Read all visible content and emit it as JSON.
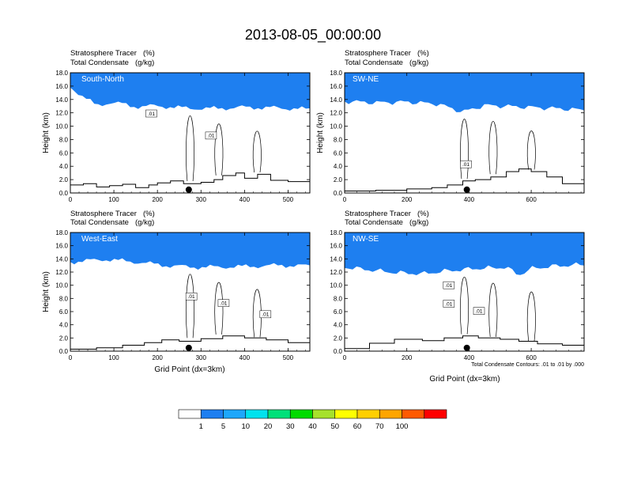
{
  "title": "2013-08-05_00:00:00",
  "colors": {
    "levels": [
      "#ffffff",
      "#1e7ff0",
      "#1ea7fb",
      "#00e2ee",
      "#00e07a",
      "#00db00",
      "#a6e12c",
      "#ffff00",
      "#ffcf00",
      "#ffa500",
      "#ff5a00",
      "#ff0000"
    ],
    "terrain": "#000000",
    "contour": "#000000"
  },
  "colorbar": {
    "labels": [
      "1",
      "5",
      "10",
      "20",
      "30",
      "40",
      "50",
      "60",
      "70",
      "100"
    ]
  },
  "contour_note": "Total Condensate Contours: .01 to .01 by .000",
  "chart_data": [
    {
      "type": "heatmap",
      "panel": "South-North",
      "header_left_1": "Stratosphere Tracer",
      "header_units_1": "(%)",
      "header_left_2": "Total Condensate",
      "header_units_2": "(g/kg)",
      "ylabel": "Height (km)",
      "xlabel": "",
      "xlim": [
        0,
        550
      ],
      "ylim": [
        0,
        18
      ],
      "xticks": [
        "0",
        "100",
        "200",
        "300",
        "400",
        "500"
      ],
      "yticks": [
        "0.0",
        "2.0",
        "4.0",
        "6.0",
        "8.0",
        "10.0",
        "12.0",
        "14.0",
        "16.0",
        "18.0"
      ],
      "tropopause_km": [
        [
          0,
          15.8
        ],
        [
          30,
          14.2
        ],
        [
          60,
          13.0
        ],
        [
          90,
          13.4
        ],
        [
          120,
          13.2
        ],
        [
          150,
          12.8
        ],
        [
          200,
          12.9
        ],
        [
          260,
          12.6
        ],
        [
          320,
          12.5
        ],
        [
          400,
          12.7
        ],
        [
          480,
          12.6
        ],
        [
          550,
          12.4
        ]
      ],
      "terrain_km": [
        [
          0,
          1.2
        ],
        [
          30,
          1.4
        ],
        [
          60,
          0.9
        ],
        [
          90,
          1.1
        ],
        [
          120,
          1.3
        ],
        [
          150,
          0.8
        ],
        [
          180,
          1.2
        ],
        [
          200,
          1.5
        ],
        [
          230,
          1.8
        ],
        [
          260,
          1.4
        ],
        [
          300,
          1.6
        ],
        [
          330,
          2.0
        ],
        [
          350,
          2.6
        ],
        [
          380,
          3.0
        ],
        [
          400,
          2.2
        ],
        [
          430,
          2.8
        ],
        [
          460,
          1.9
        ],
        [
          500,
          1.7
        ],
        [
          550,
          1.6
        ]
      ],
      "contour_labels": [
        {
          "text": ".01",
          "x": 186,
          "y": 11.9
        },
        {
          "text": ".01",
          "x": 323,
          "y": 8.6
        }
      ],
      "marker_x": 272
    },
    {
      "type": "heatmap",
      "panel": "SW-NE",
      "header_left_1": "Stratosphere Tracer",
      "header_units_1": "(%)",
      "header_left_2": "Total Condensate",
      "header_units_2": "(g/kg)",
      "ylabel": "Height (km)",
      "xlabel": "",
      "xlim": [
        0,
        770
      ],
      "ylim": [
        0,
        18
      ],
      "xticks": [
        "0",
        "200",
        "400",
        "600"
      ],
      "yticks": [
        "0.0",
        "2.0",
        "4.0",
        "6.0",
        "8.0",
        "10.0",
        "12.0",
        "14.0",
        "16.0",
        "18.0"
      ],
      "tropopause_km": [
        [
          0,
          13.6
        ],
        [
          100,
          13.4
        ],
        [
          200,
          13.5
        ],
        [
          300,
          13.2
        ],
        [
          380,
          12.0
        ],
        [
          450,
          13.0
        ],
        [
          550,
          12.8
        ],
        [
          650,
          12.6
        ],
        [
          770,
          12.3
        ]
      ],
      "terrain_km": [
        [
          0,
          0.3
        ],
        [
          100,
          0.4
        ],
        [
          200,
          0.6
        ],
        [
          280,
          0.8
        ],
        [
          330,
          1.2
        ],
        [
          380,
          1.8
        ],
        [
          420,
          2.0
        ],
        [
          470,
          2.4
        ],
        [
          520,
          3.2
        ],
        [
          560,
          3.6
        ],
        [
          600,
          3.2
        ],
        [
          650,
          2.4
        ],
        [
          700,
          1.4
        ],
        [
          770,
          1.3
        ]
      ],
      "contour_labels": [
        {
          "text": ".01",
          "x": 390,
          "y": 4.3
        }
      ],
      "marker_x": 393
    },
    {
      "type": "heatmap",
      "panel": "West-East",
      "header_left_1": "Stratosphere Tracer",
      "header_units_1": "(%)",
      "header_left_2": "Total Condensate",
      "header_units_2": "(g/kg)",
      "ylabel": "Height (km)",
      "xlabel": "Grid Point (dx=3km)",
      "xlim": [
        0,
        550
      ],
      "ylim": [
        0,
        18
      ],
      "xticks": [
        "0",
        "100",
        "200",
        "300",
        "400",
        "500"
      ],
      "yticks": [
        "0.0",
        "2.0",
        "4.0",
        "6.0",
        "8.0",
        "10.0",
        "12.0",
        "14.0",
        "16.0",
        "18.0"
      ],
      "tropopause_km": [
        [
          0,
          13.4
        ],
        [
          80,
          13.8
        ],
        [
          150,
          13.4
        ],
        [
          230,
          12.8
        ],
        [
          300,
          12.6
        ],
        [
          400,
          12.7
        ],
        [
          480,
          12.9
        ],
        [
          550,
          12.8
        ]
      ],
      "terrain_km": [
        [
          0,
          0.3
        ],
        [
          60,
          0.5
        ],
        [
          120,
          0.9
        ],
        [
          170,
          1.3
        ],
        [
          210,
          1.7
        ],
        [
          250,
          1.5
        ],
        [
          300,
          1.9
        ],
        [
          350,
          2.3
        ],
        [
          400,
          2.0
        ],
        [
          450,
          1.7
        ],
        [
          500,
          1.3
        ],
        [
          550,
          1.1
        ]
      ],
      "contour_labels": [
        {
          "text": ".01",
          "x": 278,
          "y": 8.3
        },
        {
          "text": ".01",
          "x": 352,
          "y": 7.3
        },
        {
          "text": ".01",
          "x": 448,
          "y": 5.6
        }
      ],
      "marker_x": 272
    },
    {
      "type": "heatmap",
      "panel": "NW-SE",
      "header_left_1": "Stratosphere Tracer",
      "header_units_1": "(%)",
      "header_left_2": "Total Condensate",
      "header_units_2": "(g/kg)",
      "ylabel": "",
      "xlabel": "Grid Point (dx=3km)",
      "xlim": [
        0,
        770
      ],
      "ylim": [
        0,
        18
      ],
      "xticks": [
        "0",
        "200",
        "400",
        "600"
      ],
      "yticks": [
        "0.0",
        "2.0",
        "4.0",
        "6.0",
        "8.0",
        "10.0",
        "12.0",
        "14.0",
        "16.0",
        "18.0"
      ],
      "tropopause_km": [
        [
          0,
          12.6
        ],
        [
          80,
          12.2
        ],
        [
          160,
          11.8
        ],
        [
          250,
          11.6
        ],
        [
          320,
          12.0
        ],
        [
          420,
          12.4
        ],
        [
          520,
          12.6
        ],
        [
          560,
          11.4
        ],
        [
          600,
          12.4
        ],
        [
          680,
          12.8
        ],
        [
          770,
          13.0
        ]
      ],
      "terrain_km": [
        [
          0,
          0.4
        ],
        [
          80,
          1.2
        ],
        [
          160,
          1.8
        ],
        [
          250,
          1.6
        ],
        [
          320,
          2.0
        ],
        [
          380,
          2.3
        ],
        [
          430,
          2.0
        ],
        [
          500,
          1.8
        ],
        [
          560,
          1.5
        ],
        [
          620,
          1.1
        ],
        [
          700,
          0.9
        ],
        [
          770,
          0.6
        ]
      ],
      "contour_labels": [
        {
          "text": ".01",
          "x": 335,
          "y": 10.0
        },
        {
          "text": ".01",
          "x": 335,
          "y": 7.2
        },
        {
          "text": ".01",
          "x": 432,
          "y": 6.1
        }
      ],
      "marker_x": 393
    }
  ]
}
